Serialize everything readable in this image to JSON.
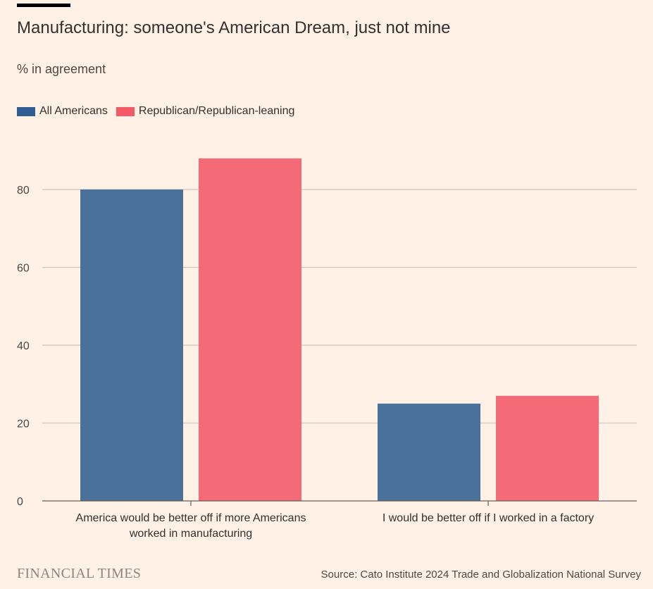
{
  "title": "Manufacturing: someone's American Dream, just not mine",
  "subtitle": "% in agreement",
  "legend": [
    {
      "label": "All Americans",
      "color": "#2F5E92"
    },
    {
      "label": "Republican/Republican-leaning",
      "color": "#F45A66"
    }
  ],
  "chart_data": {
    "type": "bar",
    "categories": [
      "America would be better off if more Americans worked in manufacturing",
      "I would be better off if I worked in a factory"
    ],
    "category_label_lines": [
      [
        "America would be better off if more Americans",
        "worked in manufacturing"
      ],
      [
        "I would be better off if I worked in a factory"
      ]
    ],
    "series": [
      {
        "name": "All Americans",
        "color": "#4A7199",
        "values": [
          80,
          25
        ]
      },
      {
        "name": "Republican/Republican-leaning",
        "color": "#F46A76",
        "values": [
          88,
          27
        ]
      }
    ],
    "yticks": [
      "0",
      "20",
      "40",
      "60",
      "80"
    ],
    "ylim": [
      0,
      100
    ],
    "grid": true,
    "legend_position": "top-left"
  },
  "footer": {
    "brand": "FINANCIAL TIMES",
    "source": "Source: Cato Institute 2024 Trade and Globalization National Survey"
  }
}
